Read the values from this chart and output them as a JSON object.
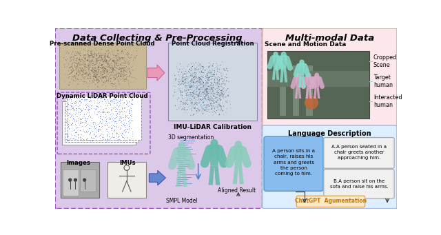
{
  "title_left": "Data Collecting & Pre-Processing",
  "title_right": "Multi-modal Data",
  "left_bg_color": "#ddc8e8",
  "left_border_color": "#9966bb",
  "right_top_bg_color": "#fce8ea",
  "right_bot_bg_color": "#ddeeff",
  "label_prescanned": "Pre-scanned Dense Point Cloud",
  "label_dynamic": "Dynamic LiDAR Point Cloud",
  "label_images": "Images",
  "label_imus": "IMUs",
  "label_pcr": "Point Cloud Registration",
  "label_imu_lidar": "IMU-LiDAR Calibration",
  "label_3dseg": "3D segmentation",
  "label_smpl": "SMPL Model",
  "label_aligned": "Aligned Result",
  "label_scene_motion": "Scene and Motion Data",
  "label_cropped": "Cropped\nScene",
  "label_target": "Target\nhuman",
  "label_interacted": "Interacted\nhuman",
  "label_lang": "Language Description",
  "text_input": "A person sits in a\nchair, raises his\narms and greets\nthe person\ncoming to him.",
  "text_a": "A.A person seated in a\nchair greets another\napproaching him.",
  "text_b": "B.A person sit on the\nsofa and raise his arms.",
  "label_chatgpt": "ChatGPT  Agumentation",
  "fig_width": 6.4,
  "fig_height": 3.41
}
